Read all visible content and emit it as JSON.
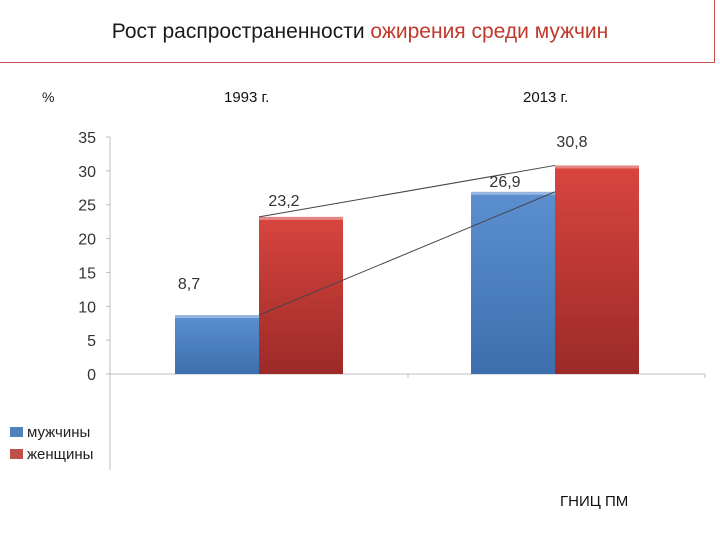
{
  "slide": {
    "title_prefix": "Рост распространенности ",
    "title_highlight": "ожирения среди мужчин",
    "unit": "%",
    "year_1": "1993 г.",
    "year_2": "2013 г.",
    "source": "ГНИЦ ПМ"
  },
  "colors": {
    "men": "#4f81bd",
    "women": "#c0504d",
    "accent": "#c0392b"
  },
  "chart_data": {
    "type": "bar",
    "title": "Рост распространенности ожирения среди мужчин",
    "xlabel": "",
    "ylabel": "%",
    "categories": [
      "1993 г.",
      "2013 г."
    ],
    "series": [
      {
        "name": "мужчины",
        "values": [
          8.7,
          26.9
        ],
        "labels": [
          "8,7",
          "26,9"
        ]
      },
      {
        "name": "женщины",
        "values": [
          23.2,
          30.8
        ],
        "labels": [
          "23,2",
          "30,8"
        ]
      }
    ],
    "ylim": [
      0,
      35
    ],
    "yticks": [
      0,
      5,
      10,
      15,
      20,
      25,
      30,
      35
    ],
    "legend": "bottom-left"
  }
}
